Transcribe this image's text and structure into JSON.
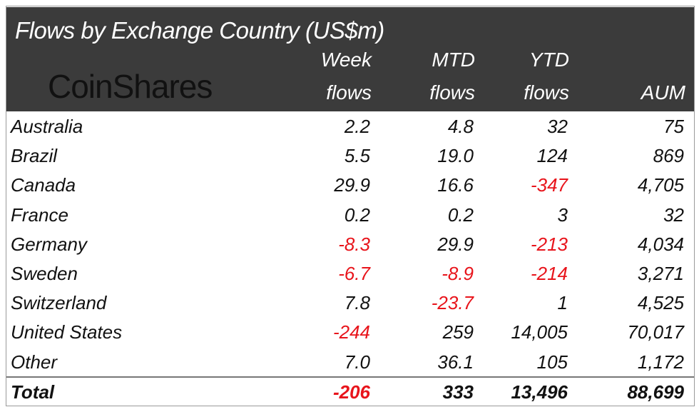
{
  "title": "Flows by Exchange Country (US$m)",
  "logo": "CoinShares",
  "colors": {
    "header_bg": "#3b3b3b",
    "negative": "#e8141b",
    "text": "#111111"
  },
  "chart_data": {
    "type": "table",
    "title": "Flows by Exchange Country (US$m)",
    "columns": [
      {
        "top": "Week",
        "bottom": "flows"
      },
      {
        "top": "MTD",
        "bottom": "flows"
      },
      {
        "top": "YTD",
        "bottom": "flows"
      },
      {
        "top": "",
        "bottom": "AUM"
      }
    ],
    "rows": [
      {
        "name": "Australia",
        "values": [
          "2.2",
          "4.8",
          "32",
          "75"
        ]
      },
      {
        "name": "Brazil",
        "values": [
          "5.5",
          "19.0",
          "124",
          "869"
        ]
      },
      {
        "name": "Canada",
        "values": [
          "29.9",
          "16.6",
          "-347",
          "4,705"
        ]
      },
      {
        "name": "France",
        "values": [
          "0.2",
          "0.2",
          "3",
          "32"
        ]
      },
      {
        "name": "Germany",
        "values": [
          "-8.3",
          "29.9",
          "-213",
          "4,034"
        ]
      },
      {
        "name": "Sweden",
        "values": [
          "-6.7",
          "-8.9",
          "-214",
          "3,271"
        ]
      },
      {
        "name": "Switzerland",
        "values": [
          "7.8",
          "-23.7",
          "1",
          "4,525"
        ]
      },
      {
        "name": "United States",
        "values": [
          "-244",
          "259",
          "14,005",
          "70,017"
        ]
      },
      {
        "name": "Other",
        "values": [
          "7.0",
          "36.1",
          "105",
          "1,172"
        ]
      }
    ],
    "total": {
      "name": "Total",
      "values": [
        "-206",
        "333",
        "13,496",
        "88,699"
      ]
    }
  }
}
